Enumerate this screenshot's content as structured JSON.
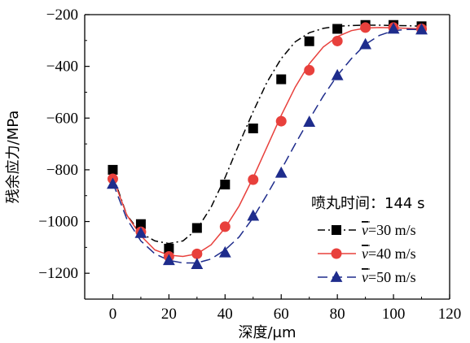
{
  "chart_data": {
    "type": "line",
    "xlabel": "深度/μm",
    "ylabel": "残余应力/MPa",
    "xlim": [
      -10,
      120
    ],
    "ylim": [
      -1300,
      -200
    ],
    "xticks": [
      0,
      20,
      40,
      60,
      80,
      100,
      120
    ],
    "yticks": [
      -200,
      -400,
      -600,
      -800,
      -1000,
      -1200
    ],
    "xtick_labels": [
      "0",
      "20",
      "40",
      "60",
      "80",
      "100",
      "120"
    ],
    "ytick_labels": [
      "−200",
      "−400",
      "−600",
      "−800",
      "−1000",
      "−1200"
    ],
    "legend_title": "喷丸时间：144 s",
    "legend_position": "bottom-right",
    "grid": false,
    "x": [
      0,
      10,
      20,
      30,
      40,
      50,
      60,
      70,
      80,
      90,
      100,
      110
    ],
    "series": [
      {
        "name": "v̄=30 m/s",
        "legend_var": "v",
        "legend_rest": "=30 m/s",
        "color": "#000000",
        "marker": "square",
        "line_style": "dash-dot",
        "values": [
          -800,
          -1010,
          -1105,
          -1025,
          -857,
          -640,
          -450,
          -303,
          -255,
          -240,
          -240,
          -245
        ],
        "fit_x": [
          0,
          5,
          10,
          15,
          20,
          25,
          30,
          35,
          40,
          45,
          50,
          55,
          60,
          65,
          70,
          75,
          80,
          85,
          90,
          95,
          100,
          105,
          110
        ],
        "fit_y": [
          -820,
          -975,
          -1045,
          -1075,
          -1085,
          -1075,
          -1030,
          -945,
          -830,
          -700,
          -575,
          -460,
          -370,
          -305,
          -270,
          -253,
          -245,
          -242,
          -241,
          -241,
          -242,
          -243,
          -245
        ]
      },
      {
        "name": "v̄=40 m/s",
        "legend_var": "v",
        "legend_rest": "=40 m/s",
        "color": "#e8403c",
        "marker": "circle",
        "line_style": "solid",
        "values": [
          -835,
          -1040,
          -1135,
          -1125,
          -1020,
          -838,
          -612,
          -415,
          -302,
          -250,
          -250,
          -255
        ],
        "fit_x": [
          0,
          5,
          10,
          15,
          20,
          25,
          30,
          35,
          40,
          45,
          50,
          55,
          60,
          65,
          70,
          75,
          80,
          85,
          90,
          95,
          100,
          105,
          110
        ],
        "fit_y": [
          -830,
          -975,
          -1055,
          -1110,
          -1130,
          -1135,
          -1125,
          -1090,
          -1025,
          -940,
          -830,
          -710,
          -590,
          -480,
          -390,
          -325,
          -285,
          -262,
          -252,
          -250,
          -251,
          -253,
          -255
        ]
      },
      {
        "name": "v̄=50 m/s",
        "legend_var": "v",
        "legend_rest": "=50 m/s",
        "color": "#1e2c8c",
        "marker": "triangle",
        "line_style": "dashed",
        "values": [
          -855,
          -1045,
          -1150,
          -1165,
          -1120,
          -978,
          -812,
          -615,
          -435,
          -315,
          -255,
          -258
        ],
        "fit_x": [
          0,
          5,
          10,
          15,
          20,
          25,
          30,
          35,
          40,
          45,
          50,
          55,
          60,
          65,
          70,
          75,
          80,
          85,
          90,
          95,
          100,
          105,
          110
        ],
        "fit_y": [
          -850,
          -990,
          -1075,
          -1125,
          -1150,
          -1160,
          -1160,
          -1145,
          -1110,
          -1060,
          -985,
          -895,
          -800,
          -700,
          -605,
          -515,
          -435,
          -370,
          -315,
          -280,
          -262,
          -257,
          -258
        ]
      }
    ]
  }
}
